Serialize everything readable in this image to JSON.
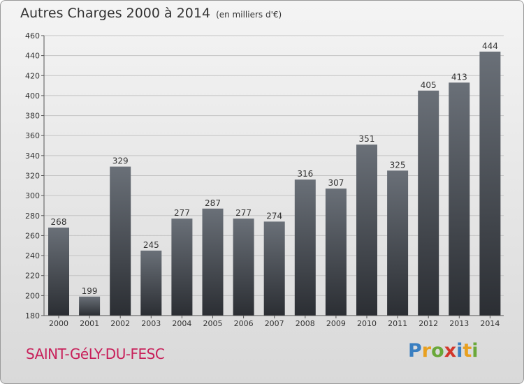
{
  "title": "Autres Charges 2000 à 2014",
  "subtitle": "(en milliers d'€)",
  "commune": "SAINT-GéLY-DU-FESC",
  "logo": {
    "letters": [
      "P",
      "r",
      "o",
      "x",
      "i",
      "t",
      "i"
    ],
    "colors": [
      "#3a7fc1",
      "#e8a020",
      "#6aa83a",
      "#d2362b",
      "#3a7fc1",
      "#e8a020",
      "#6aa83a"
    ]
  },
  "chart_data": {
    "type": "bar",
    "categories": [
      "2000",
      "2001",
      "2002",
      "2003",
      "2004",
      "2005",
      "2006",
      "2007",
      "2008",
      "2009",
      "2010",
      "2011",
      "2012",
      "2013",
      "2014"
    ],
    "values": [
      268,
      199,
      329,
      245,
      277,
      287,
      277,
      274,
      316,
      307,
      351,
      325,
      405,
      413,
      444
    ],
    "data_labels": [
      "268",
      "199",
      "329",
      "245",
      "277",
      "287",
      "277",
      "274",
      "316",
      "307",
      "351",
      "325",
      "405",
      "413",
      "444"
    ],
    "ylim": [
      180,
      460
    ],
    "yticks": [
      180,
      200,
      220,
      240,
      260,
      280,
      300,
      320,
      340,
      360,
      380,
      400,
      420,
      440,
      460
    ],
    "grid": true,
    "bar_color": "#3b3f45"
  }
}
